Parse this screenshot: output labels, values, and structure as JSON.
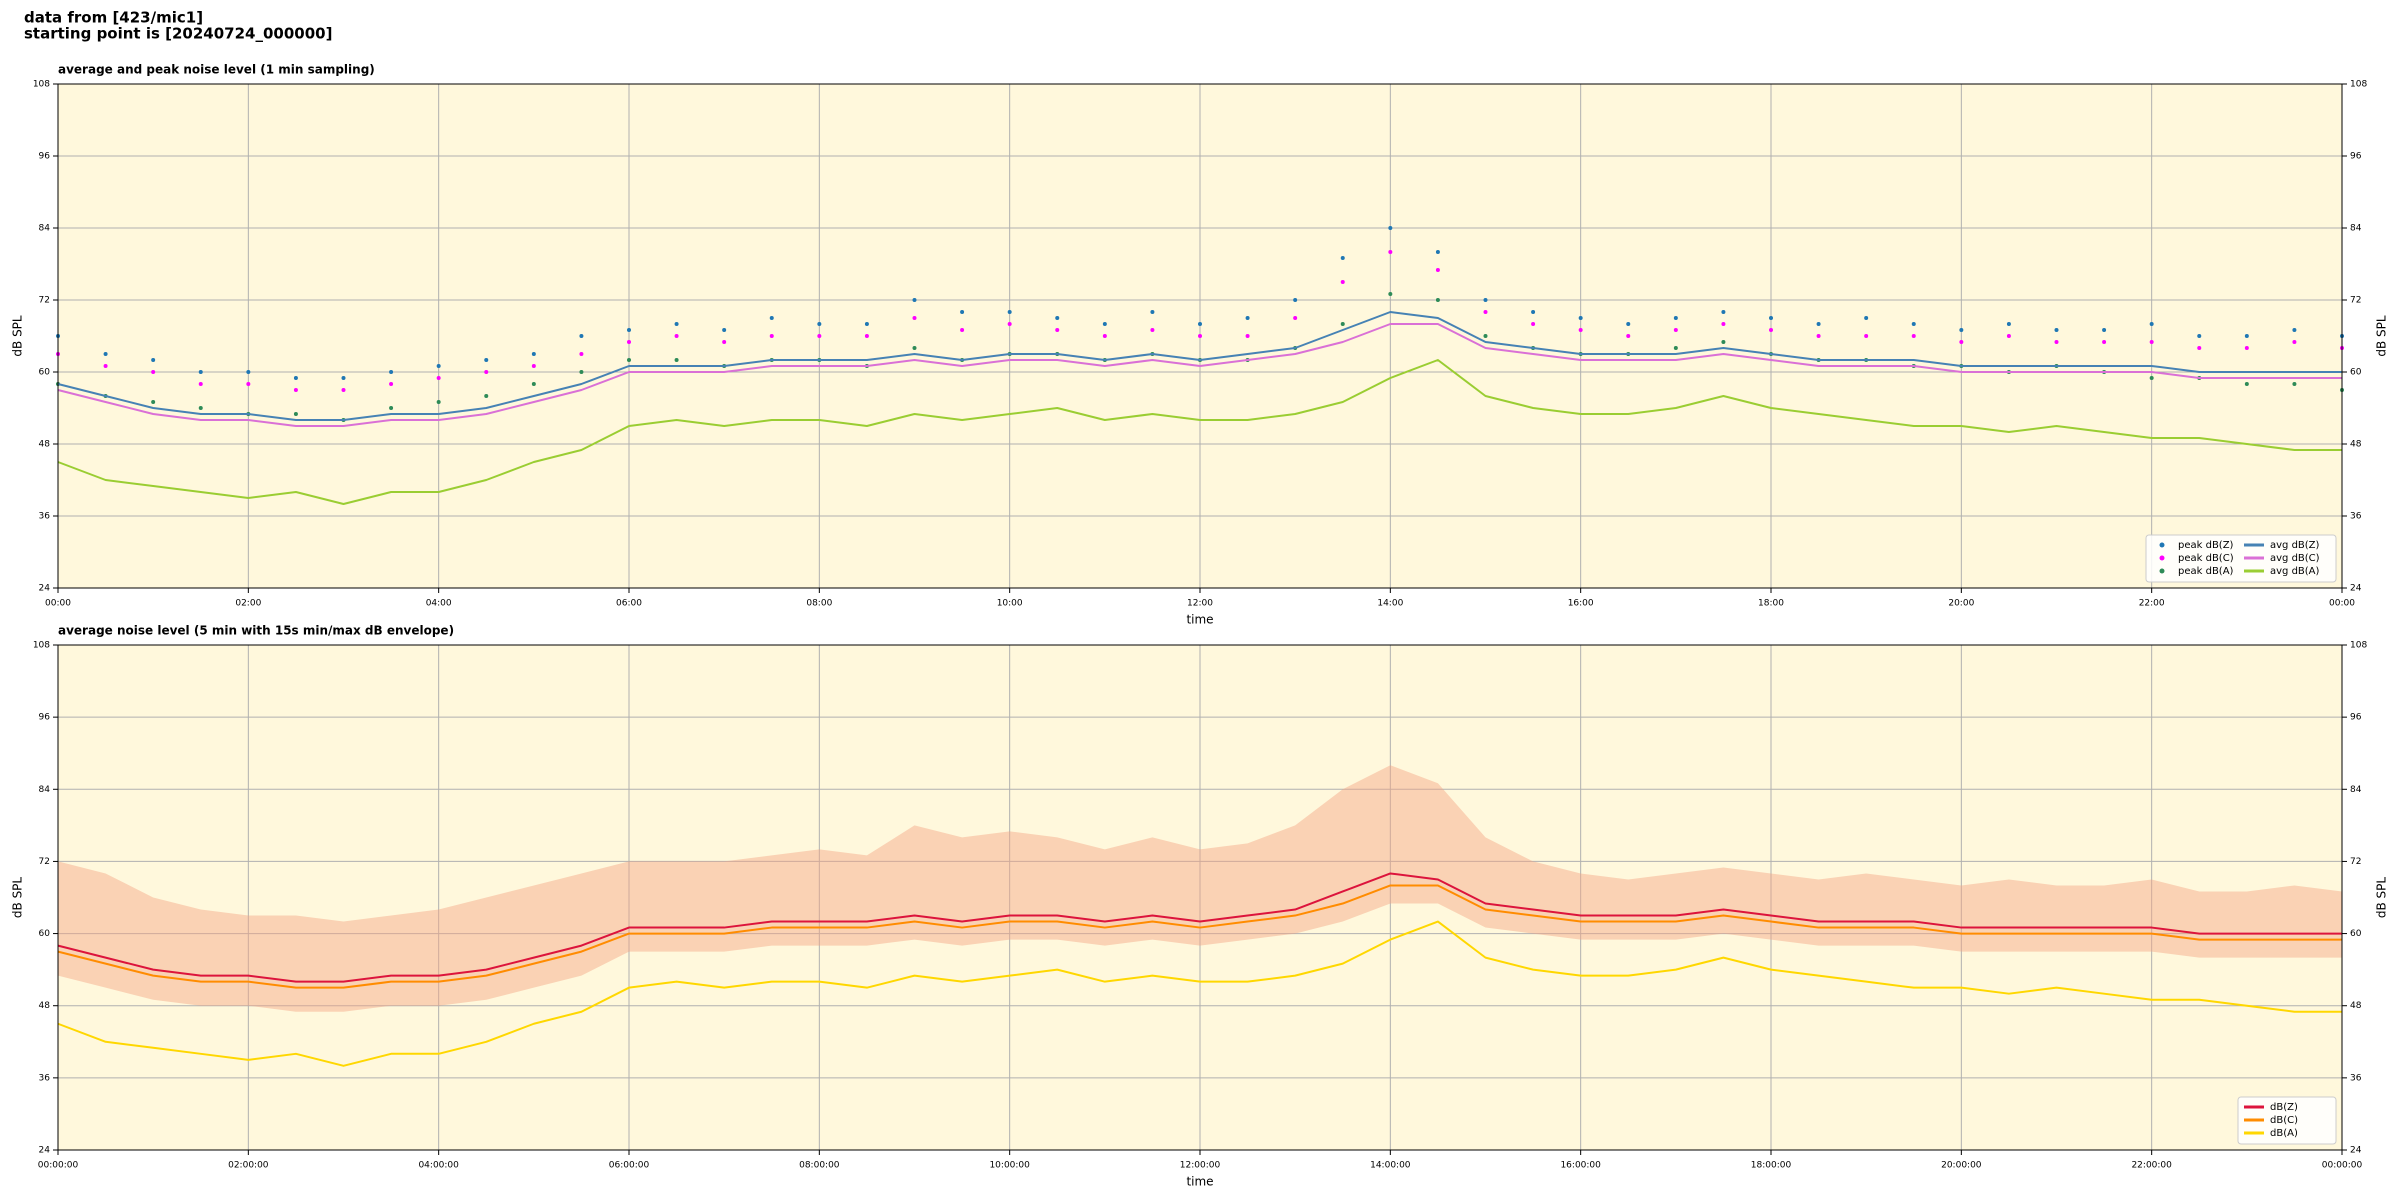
{
  "header": {
    "source": "data from [423/mic1]",
    "start": "starting point is [20240724_000000]"
  },
  "chart_data": [
    {
      "type": "line",
      "title": "average and peak noise level (1 min sampling)",
      "xlabel": "time",
      "ylabel": "dB SPL",
      "xlim": [
        0,
        24
      ],
      "xticks": [
        {
          "value": 0,
          "label": "00:00"
        },
        {
          "value": 2,
          "label": "02:00"
        },
        {
          "value": 4,
          "label": "04:00"
        },
        {
          "value": 6,
          "label": "06:00"
        },
        {
          "value": 8,
          "label": "08:00"
        },
        {
          "value": 10,
          "label": "10:00"
        },
        {
          "value": 12,
          "label": "12:00"
        },
        {
          "value": 14,
          "label": "14:00"
        },
        {
          "value": 16,
          "label": "16:00"
        },
        {
          "value": 18,
          "label": "18:00"
        },
        {
          "value": 20,
          "label": "20:00"
        },
        {
          "value": 22,
          "label": "22:00"
        },
        {
          "value": 24,
          "label": "00:00"
        }
      ],
      "ylim": [
        24,
        108
      ],
      "yticks": [
        24,
        36,
        48,
        60,
        72,
        84,
        96,
        108
      ],
      "grid": true,
      "legend": "lower right",
      "legend_columns": 2,
      "background": "#fff8dc",
      "x": [
        0,
        0.5,
        1,
        1.5,
        2,
        2.5,
        3,
        3.5,
        4,
        4.5,
        5,
        5.5,
        6,
        6.5,
        7,
        7.5,
        8,
        8.5,
        9,
        9.5,
        10,
        10.5,
        11,
        11.5,
        12,
        12.5,
        13,
        13.5,
        14,
        14.5,
        15,
        15.5,
        16,
        16.5,
        17,
        17.5,
        18,
        18.5,
        19,
        19.5,
        20,
        20.5,
        21,
        21.5,
        22,
        22.5,
        23,
        23.5,
        24
      ],
      "series": [
        {
          "name": "peak dB(Z)",
          "type": "scatter",
          "color": "#1f77b4",
          "values": [
            66,
            63,
            62,
            60,
            60,
            59,
            59,
            60,
            61,
            62,
            63,
            66,
            67,
            68,
            67,
            69,
            68,
            68,
            72,
            70,
            70,
            69,
            68,
            70,
            68,
            69,
            72,
            79,
            84,
            80,
            72,
            70,
            69,
            68,
            69,
            70,
            69,
            68,
            69,
            68,
            67,
            68,
            67,
            67,
            68,
            66,
            66,
            67,
            66
          ]
        },
        {
          "name": "peak dB(C)",
          "type": "scatter",
          "color": "#ff00ff",
          "values": [
            63,
            61,
            60,
            58,
            58,
            57,
            57,
            58,
            59,
            60,
            61,
            63,
            65,
            66,
            65,
            66,
            66,
            66,
            69,
            67,
            68,
            67,
            66,
            67,
            66,
            66,
            69,
            75,
            80,
            77,
            70,
            68,
            67,
            66,
            67,
            68,
            67,
            66,
            66,
            66,
            65,
            66,
            65,
            65,
            65,
            64,
            64,
            65,
            64
          ]
        },
        {
          "name": "peak dB(A)",
          "type": "scatter",
          "color": "#2e8b57",
          "values": [
            58,
            56,
            55,
            54,
            53,
            53,
            52,
            54,
            55,
            56,
            58,
            60,
            62,
            62,
            61,
            62,
            62,
            61,
            64,
            62,
            63,
            63,
            62,
            63,
            62,
            62,
            64,
            68,
            73,
            72,
            66,
            64,
            63,
            63,
            64,
            65,
            63,
            62,
            62,
            61,
            61,
            60,
            61,
            60,
            59,
            59,
            58,
            58,
            57
          ]
        },
        {
          "name": "avg dB(Z)",
          "type": "line",
          "color": "#4682b4",
          "values": [
            58,
            56,
            54,
            53,
            53,
            52,
            52,
            53,
            53,
            54,
            56,
            58,
            61,
            61,
            61,
            62,
            62,
            62,
            63,
            62,
            63,
            63,
            62,
            63,
            62,
            63,
            64,
            67,
            70,
            69,
            65,
            64,
            63,
            63,
            63,
            64,
            63,
            62,
            62,
            62,
            61,
            61,
            61,
            61,
            61,
            60,
            60,
            60,
            60
          ]
        },
        {
          "name": "avg dB(C)",
          "type": "line",
          "color": "#da70d6",
          "values": [
            57,
            55,
            53,
            52,
            52,
            51,
            51,
            52,
            52,
            53,
            55,
            57,
            60,
            60,
            60,
            61,
            61,
            61,
            62,
            61,
            62,
            62,
            61,
            62,
            61,
            62,
            63,
            65,
            68,
            68,
            64,
            63,
            62,
            62,
            62,
            63,
            62,
            61,
            61,
            61,
            60,
            60,
            60,
            60,
            60,
            59,
            59,
            59,
            59
          ]
        },
        {
          "name": "avg dB(A)",
          "type": "line",
          "color": "#9acd32",
          "values": [
            45,
            42,
            41,
            40,
            39,
            40,
            38,
            40,
            40,
            42,
            45,
            47,
            51,
            52,
            51,
            52,
            52,
            51,
            53,
            52,
            53,
            54,
            52,
            53,
            52,
            52,
            53,
            55,
            59,
            62,
            56,
            54,
            53,
            53,
            54,
            56,
            54,
            53,
            52,
            51,
            51,
            50,
            51,
            50,
            49,
            49,
            48,
            47,
            47
          ]
        }
      ]
    },
    {
      "type": "line",
      "title": "average noise level (5 min with 15s min/max dB envelope)",
      "xlabel": "time",
      "ylabel": "dB SPL",
      "xlim": [
        0,
        24
      ],
      "xticks": [
        {
          "value": 0,
          "label": "00:00:00"
        },
        {
          "value": 2,
          "label": "02:00:00"
        },
        {
          "value": 4,
          "label": "04:00:00"
        },
        {
          "value": 6,
          "label": "06:00:00"
        },
        {
          "value": 8,
          "label": "08:00:00"
        },
        {
          "value": 10,
          "label": "10:00:00"
        },
        {
          "value": 12,
          "label": "12:00:00"
        },
        {
          "value": 14,
          "label": "14:00:00"
        },
        {
          "value": 16,
          "label": "16:00:00"
        },
        {
          "value": 18,
          "label": "18:00:00"
        },
        {
          "value": 20,
          "label": "20:00:00"
        },
        {
          "value": 22,
          "label": "22:00:00"
        },
        {
          "value": 24,
          "label": "00:00:00"
        }
      ],
      "ylim": [
        24,
        108
      ],
      "yticks": [
        24,
        36,
        48,
        60,
        72,
        84,
        96,
        108
      ],
      "grid": true,
      "legend": "lower right",
      "legend_columns": 1,
      "background": "#fff8dc",
      "x": [
        0,
        0.5,
        1,
        1.5,
        2,
        2.5,
        3,
        3.5,
        4,
        4.5,
        5,
        5.5,
        6,
        6.5,
        7,
        7.5,
        8,
        8.5,
        9,
        9.5,
        10,
        10.5,
        11,
        11.5,
        12,
        12.5,
        13,
        13.5,
        14,
        14.5,
        15,
        15.5,
        16,
        16.5,
        17,
        17.5,
        18,
        18.5,
        19,
        19.5,
        20,
        20.5,
        21,
        21.5,
        22,
        22.5,
        23,
        23.5,
        24
      ],
      "envelope": {
        "color": "#f4a582",
        "low": [
          53,
          51,
          49,
          48,
          48,
          47,
          47,
          48,
          48,
          49,
          51,
          53,
          57,
          57,
          57,
          58,
          58,
          58,
          59,
          58,
          59,
          59,
          58,
          59,
          58,
          59,
          60,
          62,
          65,
          65,
          61,
          60,
          59,
          59,
          59,
          60,
          59,
          58,
          58,
          58,
          57,
          57,
          57,
          57,
          57,
          56,
          56,
          56,
          56
        ],
        "high": [
          72,
          70,
          66,
          64,
          63,
          63,
          62,
          63,
          64,
          66,
          68,
          70,
          72,
          72,
          72,
          73,
          74,
          73,
          78,
          76,
          77,
          76,
          74,
          76,
          74,
          75,
          78,
          84,
          88,
          85,
          76,
          72,
          70,
          69,
          70,
          71,
          70,
          69,
          70,
          69,
          68,
          69,
          68,
          68,
          69,
          67,
          67,
          68,
          67
        ]
      },
      "series": [
        {
          "name": "dB(Z)",
          "type": "line",
          "color": "#dc143c",
          "values": [
            58,
            56,
            54,
            53,
            53,
            52,
            52,
            53,
            53,
            54,
            56,
            58,
            61,
            61,
            61,
            62,
            62,
            62,
            63,
            62,
            63,
            63,
            62,
            63,
            62,
            63,
            64,
            67,
            70,
            69,
            65,
            64,
            63,
            63,
            63,
            64,
            63,
            62,
            62,
            62,
            61,
            61,
            61,
            61,
            61,
            60,
            60,
            60,
            60
          ]
        },
        {
          "name": "dB(C)",
          "type": "line",
          "color": "#ff8c00",
          "values": [
            57,
            55,
            53,
            52,
            52,
            51,
            51,
            52,
            52,
            53,
            55,
            57,
            60,
            60,
            60,
            61,
            61,
            61,
            62,
            61,
            62,
            62,
            61,
            62,
            61,
            62,
            63,
            65,
            68,
            68,
            64,
            63,
            62,
            62,
            62,
            63,
            62,
            61,
            61,
            61,
            60,
            60,
            60,
            60,
            60,
            59,
            59,
            59,
            59
          ]
        },
        {
          "name": "dB(A)",
          "type": "line",
          "color": "#ffd700",
          "values": [
            45,
            42,
            41,
            40,
            39,
            40,
            38,
            40,
            40,
            42,
            45,
            47,
            51,
            52,
            51,
            52,
            52,
            51,
            53,
            52,
            53,
            54,
            52,
            53,
            52,
            52,
            53,
            55,
            59,
            62,
            56,
            54,
            53,
            53,
            54,
            56,
            54,
            53,
            52,
            51,
            51,
            50,
            51,
            50,
            49,
            49,
            48,
            47,
            47
          ]
        }
      ]
    }
  ]
}
